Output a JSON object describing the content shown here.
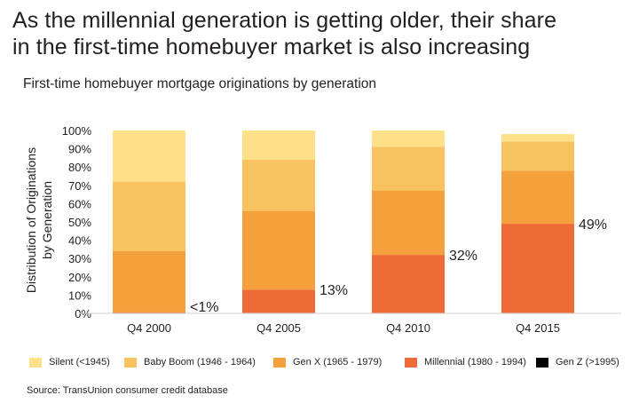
{
  "header": {
    "title_line1": "As the millennial generation is getting older, their share",
    "title_line2": "in the first-time homebuyer market is also increasing",
    "subtitle": "First-time homebuyer mortgage originations by generation"
  },
  "footer": {
    "source": "Source: TransUnion consumer credit database"
  },
  "chart_data": {
    "type": "bar",
    "stacked": true,
    "categories": [
      "Q4 2000",
      "Q4 2005",
      "Q4 2010",
      "Q4 2015"
    ],
    "ylabel_line1": "Distribution of Originations",
    "ylabel_line2": "by Generation",
    "ylim": [
      0,
      100
    ],
    "yticks": [
      "0%",
      "10%",
      "20%",
      "30%",
      "40%",
      "50%",
      "60%",
      "70%",
      "80%",
      "90%",
      "100%"
    ],
    "series": [
      {
        "name": "Millennial (1980 - 1994)",
        "color": "#ee6b37",
        "values": [
          0.5,
          13,
          32,
          49
        ]
      },
      {
        "name": "Gen X (1965 - 1979)",
        "color": "#f4a03c",
        "values": [
          33.5,
          43,
          35,
          29
        ]
      },
      {
        "name": "Baby Boom (1946 - 1964)",
        "color": "#f9c260",
        "values": [
          38,
          28,
          24,
          16
        ]
      },
      {
        "name": "Silent (<1945)",
        "color": "#fde088",
        "values": [
          28,
          16,
          9,
          4
        ]
      },
      {
        "name": "Gen Z (>1995)",
        "color": "#000000",
        "values": [
          0,
          0,
          0,
          0
        ]
      }
    ],
    "data_labels": [
      "<1%",
      "13%",
      "32%",
      "49%"
    ],
    "legend_order": [
      "Silent (<1945)",
      "Baby Boom (1946 - 1964)",
      "Gen X (1965 - 1979)",
      "Millennial (1980 - 1994)",
      "Gen Z (>1995)"
    ],
    "legend_position": "bottom",
    "grid": false
  }
}
